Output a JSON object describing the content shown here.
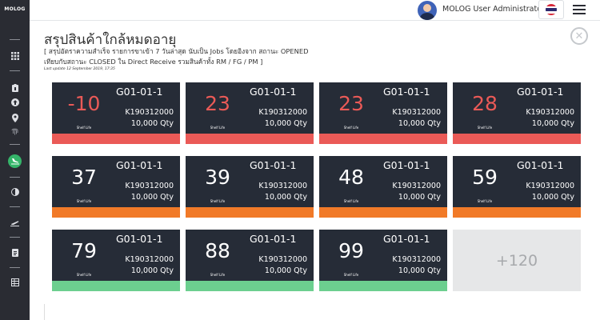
{
  "brand": {
    "logo_text": "MOLOG"
  },
  "header": {
    "username": "MOLOG User Administrator",
    "flag_colors": [
      "#d62839",
      "#ffffff",
      "#2d2a6e",
      "#ffffff",
      "#d62839"
    ]
  },
  "sidebar": {
    "items": [
      {
        "icon": "apps-grid-icon"
      },
      {
        "icon": "clipboard-icon"
      },
      {
        "icon": "upload-circle-icon"
      },
      {
        "icon": "map-pin-icon"
      },
      {
        "icon": "fingerprint-icon"
      },
      {
        "icon": "plane-landing-icon",
        "active": true
      },
      {
        "icon": "half-circle-icon"
      },
      {
        "icon": "plane-departure-icon"
      },
      {
        "icon": "document-icon"
      },
      {
        "icon": "table-icon"
      }
    ],
    "active_color": "#35b56a"
  },
  "page": {
    "title": "สรุปสินค้าใกล้หมดอายุ",
    "subtitle_line1": "[ สรุปอัตราความสำเร็จ รายการขาเข้า 7 วันล่าสุด นับเป็น Jobs โดยอิงจาก สถานะ OPENED",
    "subtitle_line2": "เทียบกับสถานะ CLOSED ใน Direct Receive รวมสินค้าทั้ง RM / FG / PM ]",
    "last_update": "Last update 12 September 2019, 17:35"
  },
  "colors": {
    "red": "#ea5a57",
    "orange": "#f17a28",
    "green": "#6ccf8f",
    "card_bg": "#262c37"
  },
  "cards": [
    {
      "days": "-10",
      "location": "G01-01-1",
      "code": "K190312000",
      "qty": "10,000 Qty",
      "shelf_label": "Shelf Life",
      "status": "red"
    },
    {
      "days": "23",
      "location": "G01-01-1",
      "code": "K190312000",
      "qty": "10,000 Qty",
      "shelf_label": "Shelf Life",
      "status": "red"
    },
    {
      "days": "23",
      "location": "G01-01-1",
      "code": "K190312000",
      "qty": "10,000 Qty",
      "shelf_label": "Shelf Life",
      "status": "red"
    },
    {
      "days": "28",
      "location": "G01-01-1",
      "code": "K190312000",
      "qty": "10,000 Qty",
      "shelf_label": "Shelf Life",
      "status": "red"
    },
    {
      "days": "37",
      "location": "G01-01-1",
      "code": "K190312000",
      "qty": "10,000 Qty",
      "shelf_label": "Shelf Life",
      "status": "orange"
    },
    {
      "days": "39",
      "location": "G01-01-1",
      "code": "K190312000",
      "qty": "10,000 Qty",
      "shelf_label": "Shelf Life",
      "status": "orange"
    },
    {
      "days": "48",
      "location": "G01-01-1",
      "code": "K190312000",
      "qty": "10,000 Qty",
      "shelf_label": "Shelf Life",
      "status": "orange"
    },
    {
      "days": "59",
      "location": "G01-01-1",
      "code": "K190312000",
      "qty": "10,000 Qty",
      "shelf_label": "Shelf Life",
      "status": "orange"
    },
    {
      "days": "79",
      "location": "G01-01-1",
      "code": "K190312000",
      "qty": "10,000 Qty",
      "shelf_label": "Shelf Life",
      "status": "green"
    },
    {
      "days": "88",
      "location": "G01-01-1",
      "code": "K190312000",
      "qty": "10,000 Qty",
      "shelf_label": "Shelf Life",
      "status": "green"
    },
    {
      "days": "99",
      "location": "G01-01-1",
      "code": "K190312000",
      "qty": "10,000 Qty",
      "shelf_label": "Shelf Life",
      "status": "green"
    }
  ],
  "more": {
    "label": "+120"
  }
}
